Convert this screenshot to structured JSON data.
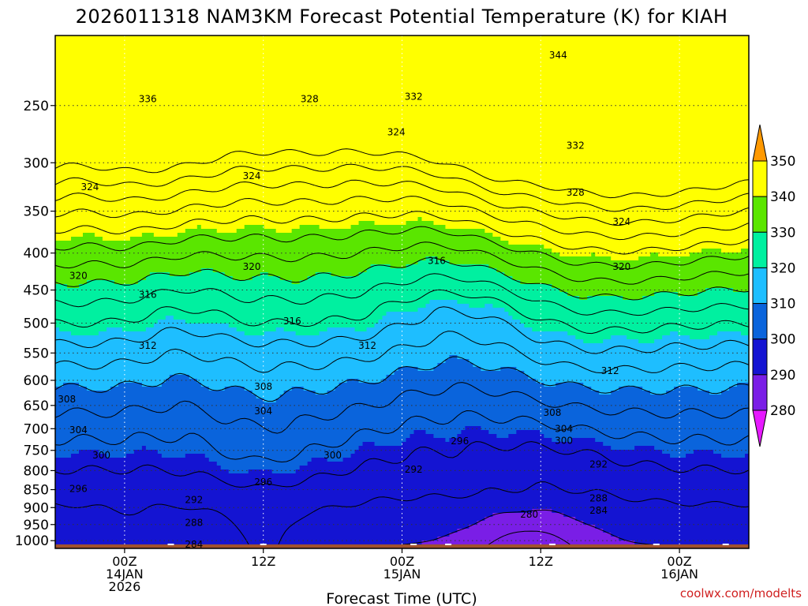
{
  "chart_data": {
    "type": "heatmap",
    "title": "2026011318 NAM3KM Forecast Potential Temperature (K) for KIAH",
    "xlabel": "Forecast Time (UTC)",
    "credit": "coolwx.com/modelts",
    "yticks": [
      250,
      300,
      350,
      400,
      450,
      500,
      550,
      600,
      650,
      700,
      750,
      800,
      850,
      900,
      950,
      1000
    ],
    "ylim": [
      1025,
      200
    ],
    "y_scale": "log",
    "xlim": [
      -6,
      54
    ],
    "xticks": [
      {
        "hour": 0,
        "line1": "00Z",
        "line2": "14JAN",
        "line3": "2026"
      },
      {
        "hour": 12,
        "line1": "12Z",
        "line2": "",
        "line3": ""
      },
      {
        "hour": 24,
        "line1": "00Z",
        "line2": "15JAN",
        "line3": ""
      },
      {
        "hour": 36,
        "line1": "12Z",
        "line2": "",
        "line3": ""
      },
      {
        "hour": 48,
        "line1": "00Z",
        "line2": "16JAN",
        "line3": ""
      }
    ],
    "colorbar": {
      "levels": [
        280,
        290,
        300,
        310,
        320,
        330,
        340,
        350
      ],
      "colors": [
        "#7a1ee6",
        "#1414d2",
        "#0a64dc",
        "#1ebeff",
        "#00f0a0",
        "#5ae600",
        "#ffff00",
        "#ffaa00"
      ],
      "below_color": "#e619ff",
      "above_color": "#ff9900"
    },
    "contour_interval": 4,
    "grid": true,
    "ground_color": "#a0522d",
    "contour_labels": [
      {
        "value": "344",
        "hour": 37.5,
        "p": 213
      },
      {
        "value": "336",
        "hour": 2,
        "p": 245
      },
      {
        "value": "328",
        "hour": 16,
        "p": 245
      },
      {
        "value": "332",
        "hour": 25,
        "p": 243
      },
      {
        "value": "324",
        "hour": 23.5,
        "p": 272
      },
      {
        "value": "332",
        "hour": 39,
        "p": 284
      },
      {
        "value": "324",
        "hour": -3,
        "p": 324
      },
      {
        "value": "324",
        "hour": 11,
        "p": 313
      },
      {
        "value": "328",
        "hour": 39,
        "p": 330
      },
      {
        "value": "324",
        "hour": 43,
        "p": 362
      },
      {
        "value": "316",
        "hour": 27,
        "p": 410
      },
      {
        "value": "320",
        "hour": -4,
        "p": 430
      },
      {
        "value": "320",
        "hour": 11,
        "p": 418
      },
      {
        "value": "320",
        "hour": 43,
        "p": 418
      },
      {
        "value": "316",
        "hour": 2,
        "p": 457
      },
      {
        "value": "316",
        "hour": 14.5,
        "p": 497
      },
      {
        "value": "312",
        "hour": 2,
        "p": 537
      },
      {
        "value": "312",
        "hour": 21,
        "p": 537
      },
      {
        "value": "312",
        "hour": 42,
        "p": 582
      },
      {
        "value": "308",
        "hour": -5,
        "p": 637
      },
      {
        "value": "308",
        "hour": 12,
        "p": 612
      },
      {
        "value": "304",
        "hour": 12,
        "p": 662
      },
      {
        "value": "308",
        "hour": 37,
        "p": 665
      },
      {
        "value": "304",
        "hour": -4,
        "p": 703
      },
      {
        "value": "304",
        "hour": 38,
        "p": 700
      },
      {
        "value": "300",
        "hour": 38,
        "p": 727
      },
      {
        "value": "300",
        "hour": -2,
        "p": 762
      },
      {
        "value": "300",
        "hour": 18,
        "p": 762
      },
      {
        "value": "296",
        "hour": 29,
        "p": 728
      },
      {
        "value": "292",
        "hour": 41,
        "p": 784
      },
      {
        "value": "292",
        "hour": 25,
        "p": 797
      },
      {
        "value": "296",
        "hour": -4,
        "p": 848
      },
      {
        "value": "296",
        "hour": 12,
        "p": 830
      },
      {
        "value": "292",
        "hour": 6,
        "p": 878
      },
      {
        "value": "288",
        "hour": 41,
        "p": 874
      },
      {
        "value": "284",
        "hour": 41,
        "p": 908
      },
      {
        "value": "280",
        "hour": 35,
        "p": 920
      },
      {
        "value": "288",
        "hour": 6,
        "p": 945
      },
      {
        "value": "284",
        "hour": 6,
        "p": 1012
      }
    ]
  }
}
